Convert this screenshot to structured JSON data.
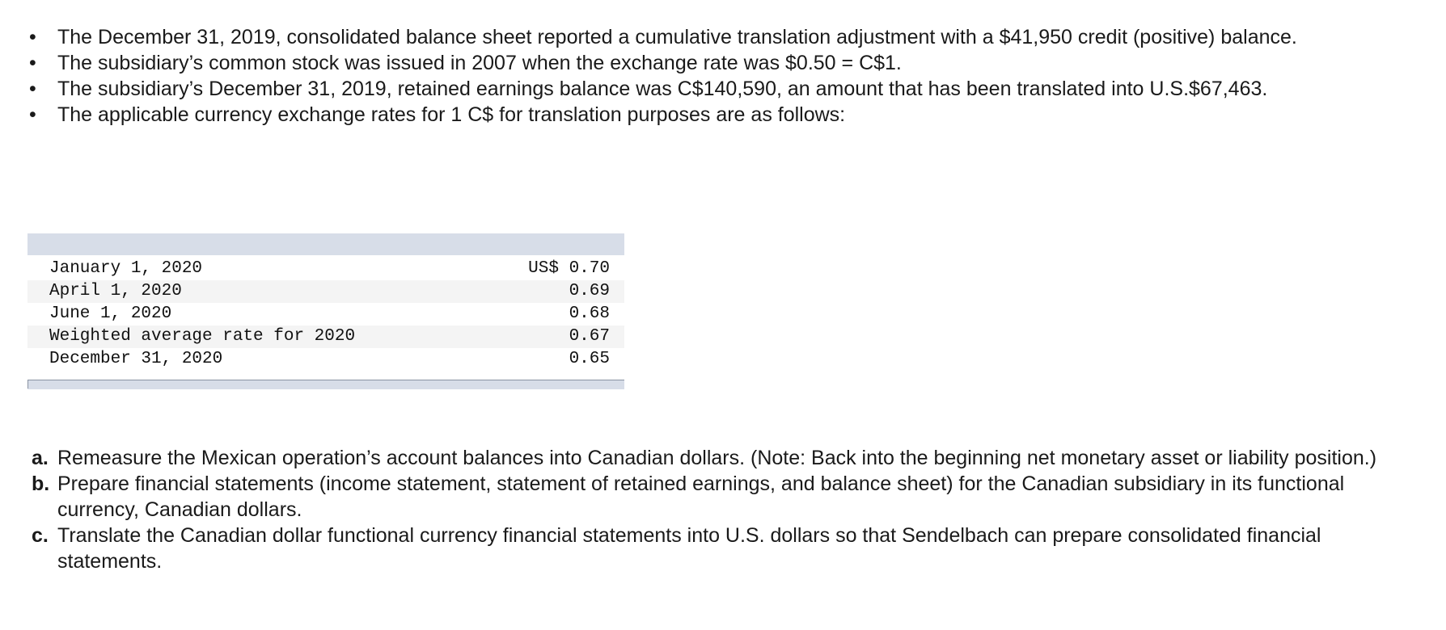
{
  "bullets": [
    "The December 31, 2019, consolidated balance sheet reported a cumulative translation adjustment with a $41,950 credit (positive) balance.",
    "The subsidiary’s common stock was issued in 2007 when the exchange rate was $0.50 = C$1.",
    "The subsidiary’s December 31, 2019, retained earnings balance was C$140,590, an amount that has been translated into U.S.$67,463.",
    "The applicable currency exchange rates for 1 C$ for translation purposes are as follows:"
  ],
  "rates_table": {
    "rows": [
      {
        "label": "January 1, 2020",
        "value": "US$ 0.70"
      },
      {
        "label": "April 1, 2020",
        "value": "0.69"
      },
      {
        "label": "June 1, 2020",
        "value": "0.68"
      },
      {
        "label": "Weighted average rate for 2020",
        "value": "0.67"
      },
      {
        "label": "December 31, 2020",
        "value": "0.65"
      }
    ]
  },
  "questions": [
    {
      "letter": "a.",
      "text": "Remeasure the Mexican operation’s account balances into Canadian dollars. (Note: Back into the beginning net monetary asset or liability position.)"
    },
    {
      "letter": "b.",
      "text": "Prepare financial statements (income statement, statement of retained earnings, and balance sheet) for the Canadian subsidiary in its functional currency, Canadian dollars."
    },
    {
      "letter": "c.",
      "text": "Translate the Canadian dollar functional currency financial statements into U.S. dollars so that Sendelbach can prepare consolidated financial statements."
    }
  ]
}
